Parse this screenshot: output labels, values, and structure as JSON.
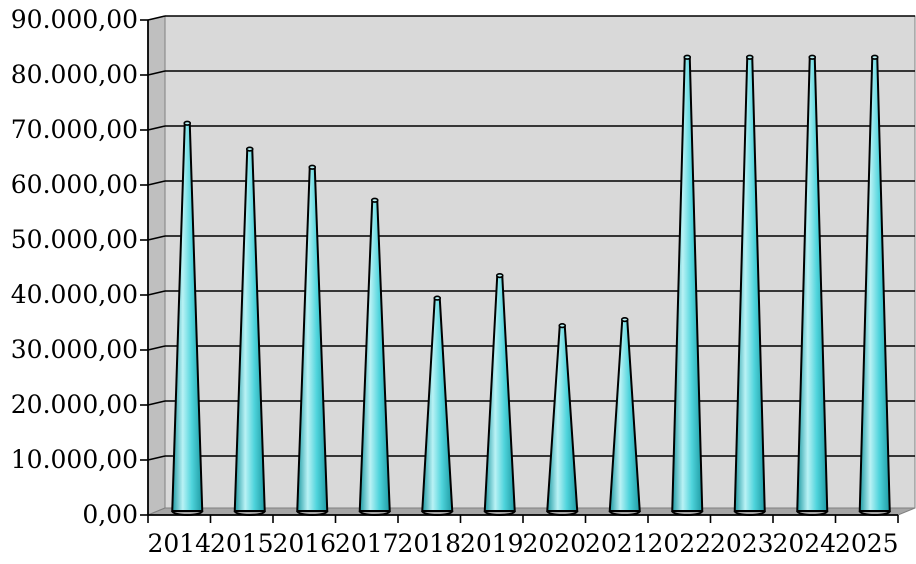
{
  "chart_data": {
    "type": "bar",
    "bar_shape": "cone",
    "title": "",
    "xlabel": "",
    "ylabel": "",
    "categories": [
      "2014",
      "2015",
      "2016",
      "2017",
      "2018",
      "2019",
      "2020",
      "2021",
      "2022",
      "2023",
      "2024",
      "2025"
    ],
    "values": [
      70500,
      65800,
      62500,
      56500,
      38700,
      42800,
      33700,
      34800,
      82500,
      82500,
      82500,
      82500
    ],
    "ylim": [
      0,
      90000
    ],
    "yticks": [
      0,
      10000,
      20000,
      30000,
      40000,
      50000,
      60000,
      70000,
      80000,
      90000
    ],
    "ytick_labels": [
      "0,00",
      "10.000,00",
      "20.000,00",
      "30.000,00",
      "40.000,00",
      "50.000,00",
      "60.000,00",
      "70.000,00",
      "80.000,00",
      "90.000,00"
    ],
    "grid": true,
    "legend": "none",
    "colors": {
      "cone_fill": "#4fd4dc",
      "cone_light": "#b9f2f5",
      "cone_dark": "#1e9aa3",
      "wall_fill": "#d9d9d9",
      "floor_fill": "#a6a6a6",
      "gridline": "#000000"
    }
  }
}
